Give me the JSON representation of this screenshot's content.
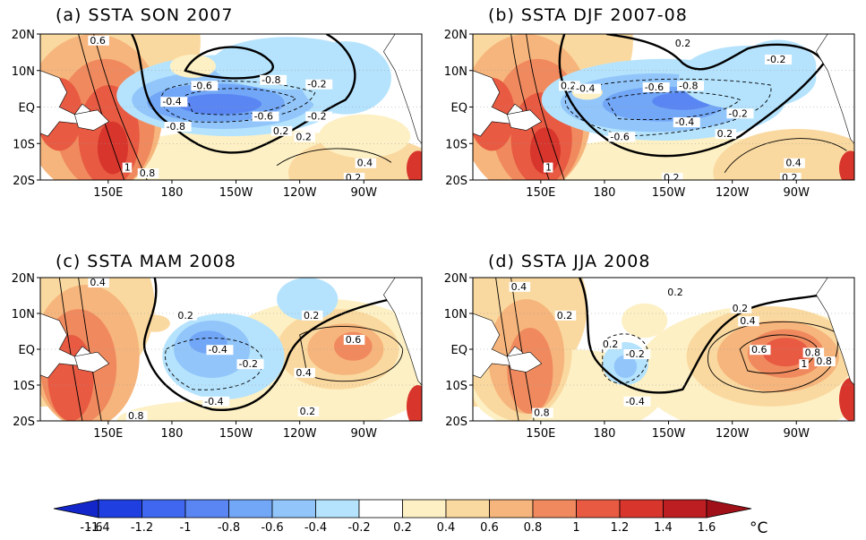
{
  "panels": [
    {
      "title": "(a) SSTA SON 2007",
      "lat_labels": [
        "20N",
        "10N",
        "EQ",
        "10S",
        "20S"
      ],
      "lon_labels": [
        "150E",
        "180",
        "150W",
        "120W",
        "90W"
      ],
      "contour_labels": [
        "0.6",
        "-0.6",
        "-0.8",
        "-0.2",
        "0.2",
        "-0.4",
        "-0.8",
        "-0.6",
        "-0.2",
        "0.2",
        "0.4",
        "1",
        "0.8",
        "0.2"
      ]
    },
    {
      "title": "(b) SSTA DJF 2007-08",
      "lat_labels": [
        "20N",
        "10N",
        "EQ",
        "10S",
        "20S"
      ],
      "lon_labels": [
        "150E",
        "180",
        "150W",
        "120W",
        "90W"
      ],
      "contour_labels": [
        "0.2",
        "-0.2",
        "0.2",
        "-0.4",
        "-0.6",
        "-0.8",
        "-0.6",
        "-0.4",
        "-0.2",
        "0.2",
        "0.4",
        "1",
        "0.2",
        "0.2"
      ]
    },
    {
      "title": "(c) SSTA MAM 2008",
      "lat_labels": [
        "20N",
        "10N",
        "EQ",
        "10S",
        "20S"
      ],
      "lon_labels": [
        "150E",
        "180",
        "150W",
        "120W",
        "90W"
      ],
      "contour_labels": [
        "0.4",
        "0.2",
        "0.2",
        "-0.4",
        "-0.2",
        "0.6",
        "0.4",
        "-0.4",
        "0.2",
        "0.8"
      ]
    },
    {
      "title": "(d) SSTA JJA 2008",
      "lat_labels": [
        "20N",
        "10N",
        "EQ",
        "10S",
        "20S"
      ],
      "lon_labels": [
        "150E",
        "180",
        "150W",
        "120W",
        "90W"
      ],
      "contour_labels": [
        "0.4",
        "0.2",
        "0.2",
        "0.2",
        "0.2",
        "0.4",
        "-0.2",
        "0.6",
        "0.8",
        "1",
        "0.8",
        "-0.4",
        "0.8"
      ]
    }
  ],
  "colorbar": {
    "tick_labels": [
      "-1.6",
      "-1.4",
      "-1.2",
      "-1",
      "-0.8",
      "-0.6",
      "-0.4",
      "-0.2",
      "0.2",
      "0.4",
      "0.6",
      "0.8",
      "1",
      "1.2",
      "1.4",
      "1.6"
    ],
    "unit": "°C",
    "colors": [
      "#1f3fe0",
      "#3f67f0",
      "#5a86f4",
      "#72a7f7",
      "#92c6fb",
      "#b5e3fd",
      "#ffffff",
      "#fdf0c4",
      "#fad9a0",
      "#f6b57c",
      "#f08a5e",
      "#e85a42",
      "#d8352c",
      "#bd1e22"
    ]
  }
}
